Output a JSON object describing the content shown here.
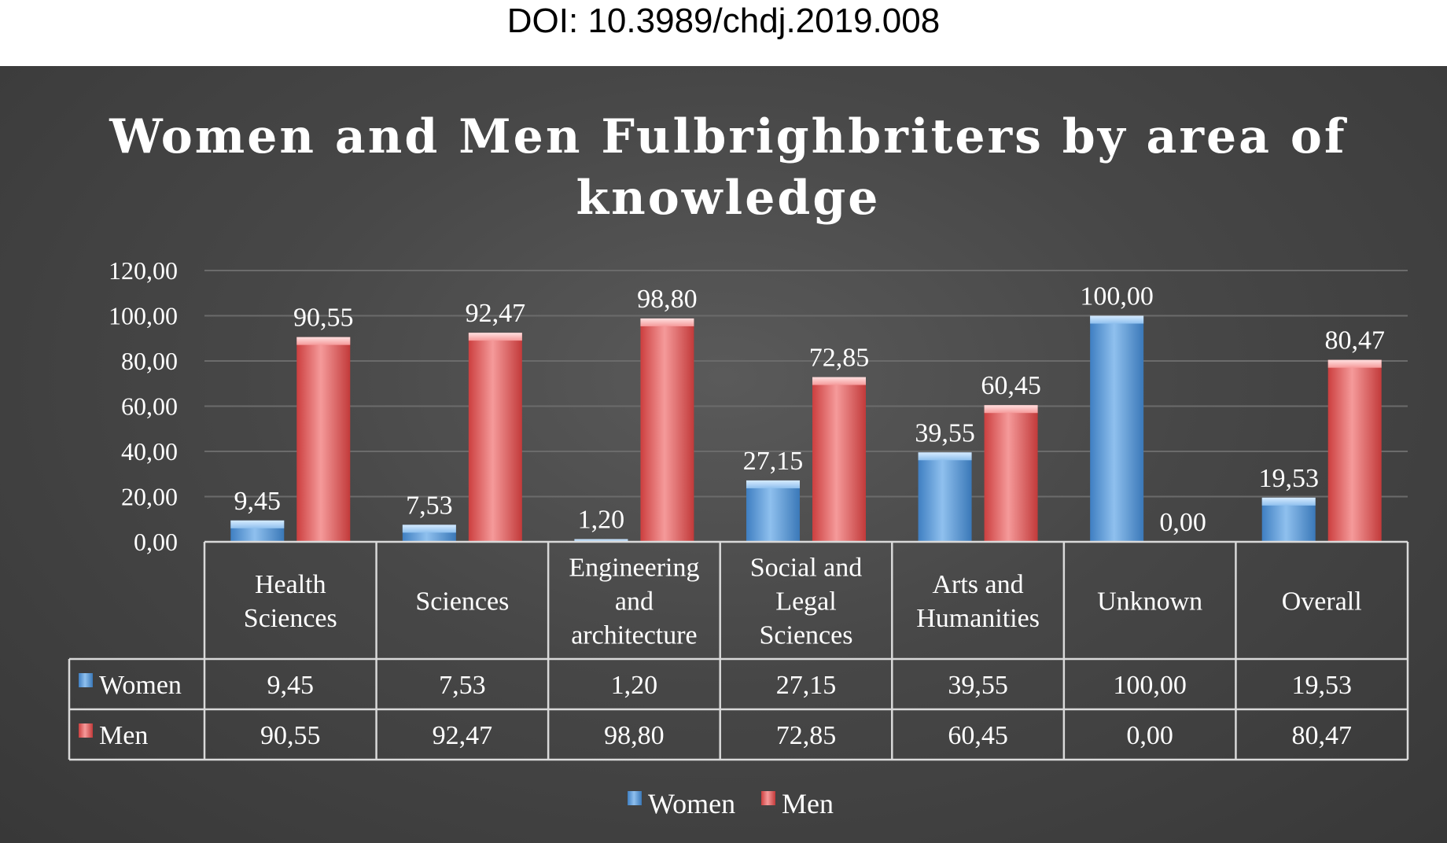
{
  "doi": "DOI: 10.3989/chdj.2019.008",
  "chart_data": {
    "type": "bar",
    "title_lines": [
      "Women and Men Fulbrighbriters by area of",
      "knowledge"
    ],
    "categories": [
      [
        "Health",
        "Sciences"
      ],
      [
        "Sciences"
      ],
      [
        "Engineering",
        "and",
        "architecture"
      ],
      [
        "Social and",
        "Legal",
        "Sciences"
      ],
      [
        "Arts and",
        "Humanities"
      ],
      [
        "Unknown"
      ],
      [
        "Overall"
      ]
    ],
    "ylim": [
      0,
      120
    ],
    "yticks": [
      "0,00",
      "20,00",
      "40,00",
      "60,00",
      "80,00",
      "100,00",
      "120,00"
    ],
    "ytick_values": [
      0,
      20,
      40,
      60,
      80,
      100,
      120
    ],
    "grid": true,
    "legend_position": "bottom",
    "data_table": true,
    "series": [
      {
        "name": "Women",
        "color": "#5b9bd5",
        "values": [
          9.45,
          7.53,
          1.2,
          27.15,
          39.55,
          100.0,
          19.53
        ],
        "labels": [
          "9,45",
          "7,53",
          "1,20",
          "27,15",
          "39,55",
          "100,00",
          "19,53"
        ]
      },
      {
        "name": "Men",
        "color": "#e05252",
        "values": [
          90.55,
          92.47,
          98.8,
          72.85,
          60.45,
          0.0,
          80.47
        ],
        "labels": [
          "90,55",
          "92,47",
          "98,80",
          "72,85",
          "60,45",
          "0,00",
          "80,47"
        ]
      }
    ]
  }
}
